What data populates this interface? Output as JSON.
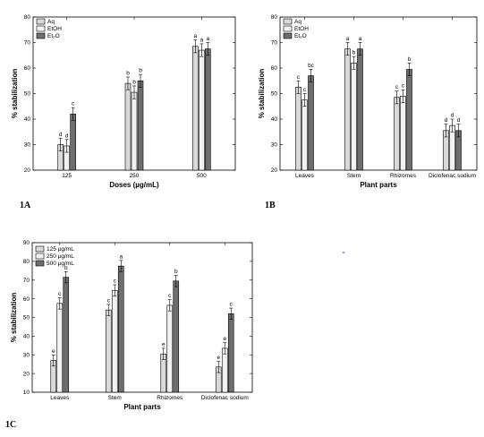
{
  "figure_labels": [
    "1A",
    "1B",
    "1C"
  ],
  "colors": {
    "light": "#d9d9d9",
    "lighter": "#f2f2f2",
    "dark": "#6e6e6e"
  },
  "chart_data": [
    {
      "panel": "1A",
      "type": "bar",
      "xlabel": "Doses (µg/mL)",
      "ylabel": "% stabilization",
      "ylim": [
        20,
        80
      ],
      "yticks": [
        20,
        30,
        40,
        50,
        60,
        70,
        80
      ],
      "categories": [
        "125",
        "250",
        "500"
      ],
      "legend_position": "top-left",
      "series": [
        {
          "name": "Aq",
          "color": "#d9d9d9",
          "values": [
            30,
            54,
            68.5
          ],
          "errors": [
            2.5,
            2.5,
            2.5
          ],
          "labels": [
            "d",
            "b",
            "a"
          ]
        },
        {
          "name": "EtOH",
          "color": "#f2f2f2",
          "values": [
            29.5,
            50.5,
            67
          ],
          "errors": [
            2.5,
            2.5,
            2.5
          ],
          "labels": [
            "d",
            "b",
            "a"
          ]
        },
        {
          "name": "Et₂O",
          "color": "#6e6e6e",
          "values": [
            42,
            55,
            67.5
          ],
          "errors": [
            2.5,
            2.5,
            2.5
          ],
          "labels": [
            "c",
            "b",
            "a"
          ]
        }
      ]
    },
    {
      "panel": "1B",
      "type": "bar",
      "xlabel": "Plant parts",
      "ylabel": "% stabilization",
      "ylim": [
        20,
        80
      ],
      "yticks": [
        20,
        30,
        40,
        50,
        60,
        70,
        80
      ],
      "categories": [
        "Leaves",
        "Stem",
        "Rhizomes",
        "Diclofenac sodium"
      ],
      "legend_position": "top-left",
      "series": [
        {
          "name": "Aq",
          "color": "#d9d9d9",
          "values": [
            52.5,
            67.5,
            48.5,
            35.5
          ],
          "errors": [
            2.5,
            2.5,
            2.5,
            2.5
          ],
          "labels": [
            "c",
            "a",
            "c",
            "d"
          ]
        },
        {
          "name": "EtOH",
          "color": "#f2f2f2",
          "values": [
            47.5,
            62,
            49,
            37.5
          ],
          "errors": [
            2.5,
            2.5,
            2.5,
            2.5
          ],
          "labels": [
            "c",
            "b",
            "c",
            "d"
          ]
        },
        {
          "name": "Et₂O",
          "color": "#6e6e6e",
          "values": [
            57,
            67.5,
            59.5,
            35.5
          ],
          "errors": [
            2.5,
            2.5,
            2.5,
            2.5
          ],
          "labels": [
            "bc",
            "a",
            "b",
            "d"
          ]
        }
      ]
    },
    {
      "panel": "1C",
      "type": "bar",
      "xlabel": "Plant parts",
      "ylabel": "% stabilization",
      "ylim": [
        10,
        90
      ],
      "yticks": [
        10,
        20,
        30,
        40,
        50,
        60,
        70,
        80,
        90
      ],
      "categories": [
        "Leaves",
        "Stem",
        "Rhizomes",
        "Diclofenac sodium"
      ],
      "legend_position": "top-left",
      "series": [
        {
          "name": "125 µg/mL",
          "color": "#d9d9d9",
          "values": [
            27,
            54,
            30.5,
            23.5
          ],
          "errors": [
            3,
            3,
            3,
            3
          ],
          "labels": [
            "e",
            "c",
            "e",
            "e"
          ]
        },
        {
          "name": "250 µg/mL",
          "color": "#f2f2f2",
          "values": [
            57.5,
            64.5,
            56.5,
            33.5
          ],
          "errors": [
            3,
            3,
            3,
            3
          ],
          "labels": [
            "c",
            "c",
            "c",
            "e"
          ]
        },
        {
          "name": "500 µg/mL",
          "color": "#6e6e6e",
          "values": [
            71.5,
            77.5,
            69.5,
            52
          ],
          "errors": [
            3,
            3,
            3,
            3
          ],
          "labels": [
            "b",
            "a",
            "b",
            "c"
          ]
        }
      ]
    }
  ]
}
